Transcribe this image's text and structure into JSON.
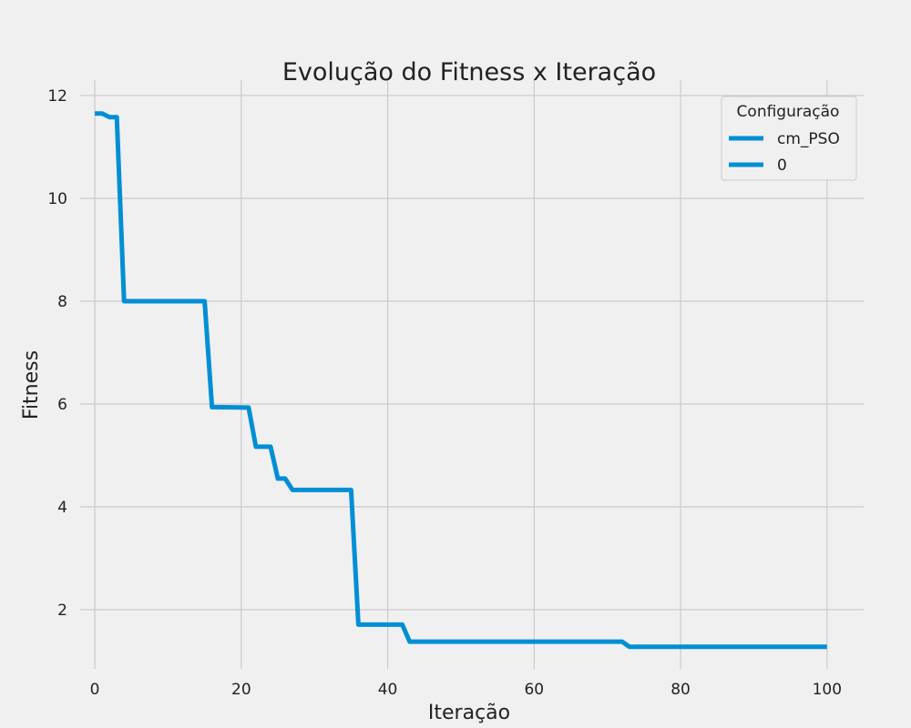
{
  "chart_data": {
    "type": "line",
    "title": "Evolução do Fitness x Iteração",
    "xlabel": "Iteração",
    "ylabel": "Fitness",
    "xlim": [
      -2,
      105
    ],
    "ylim": [
      0.85,
      12.3
    ],
    "xticks": [
      0,
      20,
      40,
      60,
      80,
      100
    ],
    "yticks": [
      2,
      4,
      6,
      8,
      10,
      12
    ],
    "grid": true,
    "legend": {
      "title": "Configuração",
      "placement": "top-right",
      "entries": [
        "cm_PSO",
        "0"
      ]
    },
    "colors": {
      "line": "#008fd5",
      "grid": "#cbcbcb",
      "background": "#f0f0f0"
    },
    "series": [
      {
        "name": "cm_PSO",
        "x": [
          0,
          1,
          2,
          3,
          4,
          15,
          16,
          21,
          22,
          24,
          25,
          26,
          27,
          35,
          36,
          42,
          43,
          72,
          73,
          100
        ],
        "values": [
          11.65,
          11.65,
          11.58,
          11.58,
          8.0,
          8.0,
          5.94,
          5.93,
          5.17,
          5.17,
          4.55,
          4.55,
          4.33,
          4.33,
          1.71,
          1.71,
          1.38,
          1.38,
          1.28,
          1.28
        ]
      }
    ]
  }
}
